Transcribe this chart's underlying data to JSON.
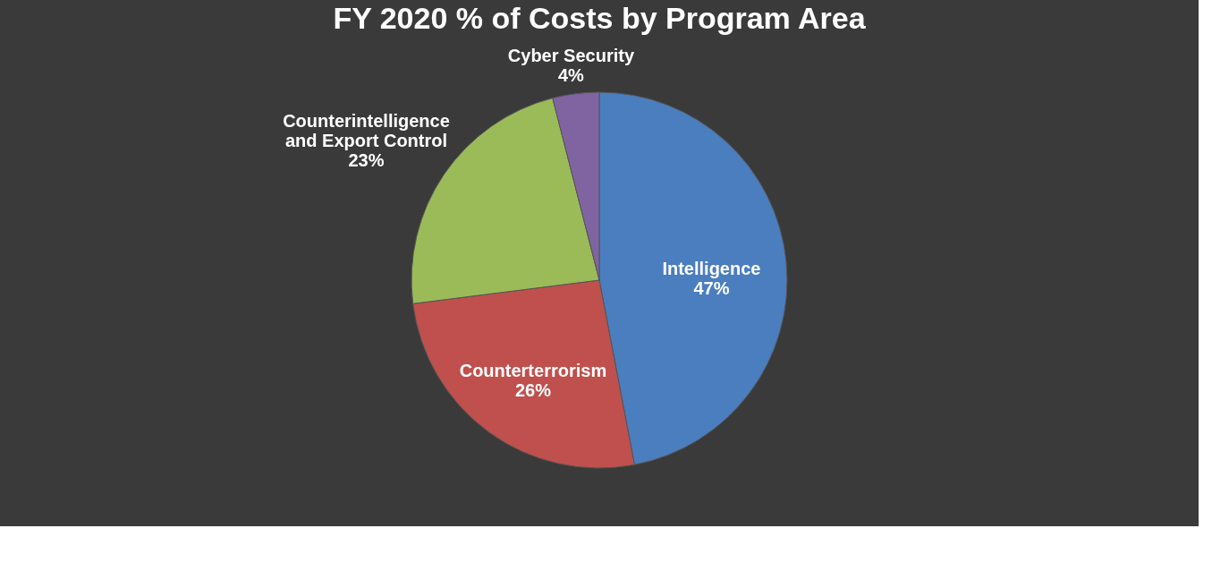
{
  "chart_data": {
    "type": "pie",
    "title": "FY 2020 % of Costs by Program Area",
    "categories": [
      "Intelligence",
      "Counterterrorism",
      "Counterintelligence\nand Export Control",
      "Cyber Security"
    ],
    "values": [
      47,
      26,
      23,
      4
    ],
    "value_labels": [
      "47%",
      "26%",
      "23%",
      "4%"
    ],
    "colors": [
      "#4a7ebf",
      "#c0504d",
      "#9bbb59",
      "#8064a2"
    ],
    "legend": false
  }
}
